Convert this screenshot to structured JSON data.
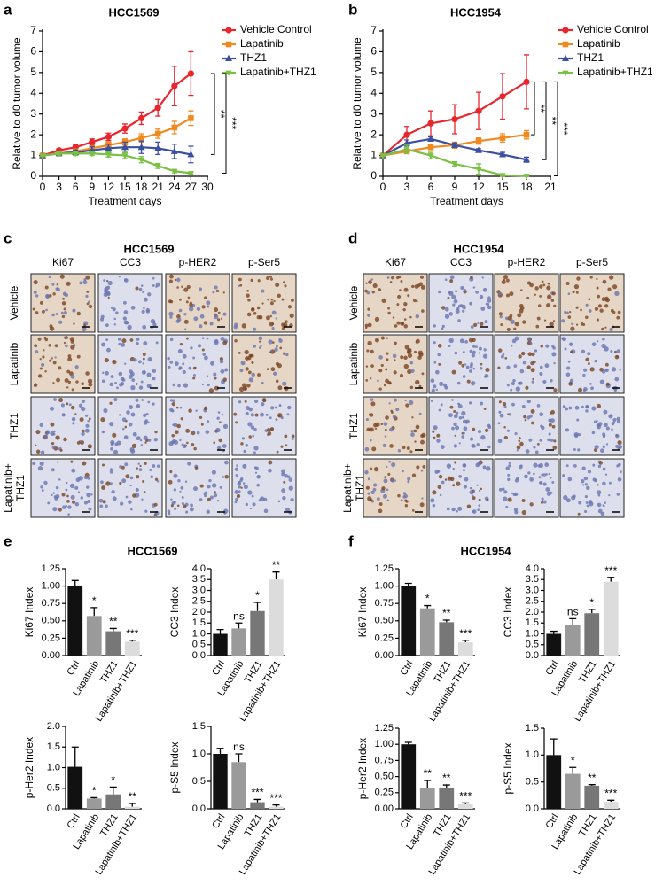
{
  "chart_data": [
    {
      "type": "line",
      "panel": "a",
      "title": "HCC1569",
      "ylabel": "Relative to d0 tumor volume",
      "xlabel": "Treatment days",
      "x": [
        0,
        3,
        6,
        9,
        12,
        15,
        18,
        21,
        24,
        27
      ],
      "xlim": [
        0,
        30
      ],
      "xticks": [
        0,
        3,
        6,
        9,
        12,
        15,
        18,
        21,
        24,
        27,
        30
      ],
      "ylim": [
        0,
        7
      ],
      "yticks": [
        0,
        1,
        2,
        3,
        4,
        5,
        6,
        7
      ],
      "legend": "outside-right",
      "series": [
        {
          "name": "Vehicle Control",
          "color": "#e8262e",
          "marker": "circle",
          "values": [
            1,
            1.25,
            1.4,
            1.65,
            1.9,
            2.3,
            2.8,
            3.3,
            4.35,
            4.95
          ],
          "errors": [
            0.05,
            0.08,
            0.12,
            0.15,
            0.18,
            0.22,
            0.3,
            0.4,
            0.95,
            1.05
          ]
        },
        {
          "name": "Lapatinib",
          "color": "#f08a1f",
          "marker": "square",
          "values": [
            1,
            1.1,
            1.2,
            1.35,
            1.5,
            1.65,
            1.85,
            2.05,
            2.35,
            2.8
          ],
          "errors": [
            0.05,
            0.07,
            0.1,
            0.12,
            0.15,
            0.15,
            0.2,
            0.22,
            0.3,
            0.35
          ]
        },
        {
          "name": "THZ1",
          "color": "#3b4fa0",
          "marker": "triangle",
          "values": [
            1,
            1.1,
            1.15,
            1.25,
            1.35,
            1.4,
            1.4,
            1.35,
            1.2,
            1.05
          ],
          "errors": [
            0.05,
            0.1,
            0.12,
            0.18,
            0.2,
            0.25,
            0.3,
            0.3,
            0.35,
            0.4
          ]
        },
        {
          "name": "Lapatinib+THZ1",
          "color": "#7ac143",
          "marker": "diamond",
          "values": [
            1,
            1.1,
            1.1,
            1.1,
            1.05,
            1.0,
            0.8,
            0.5,
            0.25,
            0.15
          ],
          "errors": [
            0.05,
            0.08,
            0.1,
            0.1,
            0.12,
            0.15,
            0.15,
            0.12,
            0.08,
            0.05
          ]
        }
      ],
      "annotations": [
        {
          "text": "**",
          "compare": [
            0,
            2
          ]
        },
        {
          "text": "***",
          "compare": [
            0,
            3
          ]
        }
      ]
    },
    {
      "type": "line",
      "panel": "b",
      "title": "HCC1954",
      "ylabel": "Relative to d0 tumor volume",
      "xlabel": "Treatment days",
      "x": [
        0,
        3,
        6,
        9,
        12,
        15,
        18
      ],
      "xlim": [
        0,
        21
      ],
      "xticks": [
        0,
        3,
        6,
        9,
        12,
        15,
        18,
        21
      ],
      "ylim": [
        0,
        7
      ],
      "yticks": [
        0,
        1,
        2,
        3,
        4,
        5,
        6,
        7
      ],
      "legend": "outside-right",
      "series": [
        {
          "name": "Vehicle Control",
          "color": "#e8262e",
          "marker": "circle",
          "values": [
            1,
            2.0,
            2.55,
            2.75,
            3.15,
            3.85,
            4.55
          ],
          "errors": [
            0.05,
            0.4,
            0.6,
            0.7,
            0.9,
            1.1,
            1.3
          ]
        },
        {
          "name": "Lapatinib",
          "color": "#f08a1f",
          "marker": "square",
          "values": [
            1,
            1.2,
            1.4,
            1.5,
            1.7,
            1.85,
            2.0
          ],
          "errors": [
            0.05,
            0.1,
            0.12,
            0.15,
            0.15,
            0.2,
            0.2
          ]
        },
        {
          "name": "THZ1",
          "color": "#3b4fa0",
          "marker": "triangle",
          "values": [
            1,
            1.6,
            1.8,
            1.5,
            1.25,
            1.05,
            0.8
          ],
          "errors": [
            0.05,
            0.15,
            0.1,
            0.1,
            0.08,
            0.1,
            0.12
          ]
        },
        {
          "name": "Lapatinib+THZ1",
          "color": "#7ac143",
          "marker": "diamond",
          "values": [
            1,
            1.3,
            1.0,
            0.6,
            0.35,
            0.05,
            0.02
          ],
          "errors": [
            0.05,
            0.2,
            0.15,
            0.1,
            0.25,
            0.05,
            0.02
          ]
        }
      ],
      "annotations": [
        {
          "text": "**",
          "compare": [
            0,
            1
          ]
        },
        {
          "text": "**",
          "compare": [
            0,
            2
          ]
        },
        {
          "text": "***",
          "compare": [
            0,
            3
          ]
        }
      ]
    },
    {
      "type": "bar",
      "ylabel": "Ki67 Index",
      "categories": [
        "Ctrl",
        "Lapatinib",
        "THZ1",
        "Lapatinib+THZ1"
      ],
      "values": [
        1.0,
        0.57,
        0.35,
        0.2
      ],
      "errors": [
        0.08,
        0.12,
        0.04,
        0.02
      ],
      "sig": [
        null,
        "*",
        "**",
        "***"
      ],
      "colors": [
        "#111111",
        "#9a9a9a",
        "#777777",
        "#dcdcdc"
      ],
      "ylim": [
        0,
        1.25
      ],
      "yticks": [
        {
          "value": 0,
          "label": "0.00"
        },
        {
          "value": 0.25,
          "label": "0.25"
        },
        {
          "value": 0.5,
          "label": "0.50"
        },
        {
          "value": 0.75,
          "label": "0.75"
        },
        {
          "value": 1,
          "label": "1.00"
        },
        {
          "value": 1.25,
          "label": "1.25"
        }
      ]
    },
    {
      "type": "bar",
      "ylabel": "CC3 Index",
      "categories": [
        "Ctrl",
        "Lapatinib",
        "THZ1",
        "Lapatinib+THZ1"
      ],
      "values": [
        1.0,
        1.25,
        2.05,
        3.5
      ],
      "errors": [
        0.2,
        0.25,
        0.4,
        0.35
      ],
      "sig": [
        null,
        "ns",
        "*",
        "**"
      ],
      "colors": [
        "#111111",
        "#9a9a9a",
        "#777777",
        "#dcdcdc"
      ],
      "ylim": [
        0,
        4
      ],
      "yticks": [
        {
          "value": 0,
          "label": "0.0"
        },
        {
          "value": 0.5,
          "label": "0.5"
        },
        {
          "value": 1,
          "label": "1.0"
        },
        {
          "value": 1.5,
          "label": "1.5"
        },
        {
          "value": 2,
          "label": "2.0"
        },
        {
          "value": 2.5,
          "label": "2.5"
        },
        {
          "value": 3,
          "label": "3.0"
        },
        {
          "value": 3.5,
          "label": "3.5"
        },
        {
          "value": 4,
          "label": "4.0"
        }
      ]
    },
    {
      "type": "bar",
      "ylabel": "p-Her2 Index",
      "categories": [
        "Ctrl",
        "Lapatinib",
        "THZ1",
        "Lapatinib+THZ1"
      ],
      "values": [
        1.02,
        0.25,
        0.35,
        0.05
      ],
      "errors": [
        0.48,
        0.02,
        0.18,
        0.08
      ],
      "sig": [
        null,
        "*",
        "*",
        "**"
      ],
      "colors": [
        "#111111",
        "#9a9a9a",
        "#777777",
        "#dcdcdc"
      ],
      "ylim": [
        0,
        2
      ],
      "yticks": [
        {
          "value": 0,
          "label": "0.0"
        },
        {
          "value": 0.5,
          "label": "0.5"
        },
        {
          "value": 1,
          "label": "1.0"
        },
        {
          "value": 1.5,
          "label": "1.5"
        },
        {
          "value": 2,
          "label": "2.0"
        }
      ]
    },
    {
      "type": "bar",
      "ylabel": "p-S5 Index",
      "categories": [
        "Ctrl",
        "Lapatinib",
        "THZ1",
        "Lapatinib+THZ1"
      ],
      "values": [
        1.0,
        0.85,
        0.12,
        0.04
      ],
      "errors": [
        0.1,
        0.15,
        0.05,
        0.03
      ],
      "sig": [
        null,
        "ns",
        "***",
        "***"
      ],
      "colors": [
        "#111111",
        "#9a9a9a",
        "#777777",
        "#dcdcdc"
      ],
      "ylim": [
        0,
        1.5
      ],
      "yticks": [
        {
          "value": 0,
          "label": "0.0"
        },
        {
          "value": 0.5,
          "label": "0.5"
        },
        {
          "value": 1,
          "label": "1.0"
        },
        {
          "value": 1.5,
          "label": "1.5"
        }
      ]
    },
    {
      "type": "bar",
      "ylabel": "Ki67 Index",
      "categories": [
        "Ctrl",
        "Lapatinib",
        "THZ1",
        "Lapatinib+THZ1"
      ],
      "values": [
        1.0,
        0.68,
        0.48,
        0.19
      ],
      "errors": [
        0.04,
        0.04,
        0.03,
        0.03
      ],
      "sig": [
        null,
        "*",
        "**",
        "***"
      ],
      "colors": [
        "#111111",
        "#9a9a9a",
        "#777777",
        "#dcdcdc"
      ],
      "ylim": [
        0,
        1.25
      ],
      "yticks": [
        {
          "value": 0,
          "label": "0.00"
        },
        {
          "value": 0.25,
          "label": "0.25"
        },
        {
          "value": 0.5,
          "label": "0.50"
        },
        {
          "value": 0.75,
          "label": "0.75"
        },
        {
          "value": 1,
          "label": "1.00"
        },
        {
          "value": 1.25,
          "label": "1.25"
        }
      ]
    },
    {
      "type": "bar",
      "ylabel": "CC3 Index",
      "categories": [
        "Ctrl",
        "Lapatinib",
        "THZ1",
        "Lapatinib+THZ1"
      ],
      "values": [
        1.0,
        1.4,
        1.95,
        3.4
      ],
      "errors": [
        0.12,
        0.3,
        0.18,
        0.2
      ],
      "sig": [
        null,
        "ns",
        "*",
        "***"
      ],
      "colors": [
        "#111111",
        "#9a9a9a",
        "#777777",
        "#dcdcdc"
      ],
      "ylim": [
        0,
        4
      ],
      "yticks": [
        {
          "value": 0,
          "label": "0.0"
        },
        {
          "value": 0.5,
          "label": "0.5"
        },
        {
          "value": 1,
          "label": "1.0"
        },
        {
          "value": 1.5,
          "label": "1.5"
        },
        {
          "value": 2,
          "label": "2.0"
        },
        {
          "value": 2.5,
          "label": "2.5"
        },
        {
          "value": 3,
          "label": "3.0"
        },
        {
          "value": 3.5,
          "label": "3.5"
        },
        {
          "value": 4,
          "label": "4.0"
        }
      ]
    },
    {
      "type": "bar",
      "ylabel": "p-Her2 Index",
      "categories": [
        "Ctrl",
        "Lapatinib",
        "THZ1",
        "Lapatinib+THZ1"
      ],
      "values": [
        1.0,
        0.32,
        0.33,
        0.07
      ],
      "errors": [
        0.03,
        0.12,
        0.04,
        0.02
      ],
      "sig": [
        null,
        "**",
        "**",
        "***"
      ],
      "colors": [
        "#111111",
        "#9a9a9a",
        "#777777",
        "#dcdcdc"
      ],
      "ylim": [
        0,
        1.25
      ],
      "yticks": [
        {
          "value": 0,
          "label": "0.00"
        },
        {
          "value": 0.25,
          "label": "0.25"
        },
        {
          "value": 0.5,
          "label": "0.50"
        },
        {
          "value": 0.75,
          "label": "0.75"
        },
        {
          "value": 1,
          "label": "1.00"
        },
        {
          "value": 1.25,
          "label": "1.25"
        }
      ]
    },
    {
      "type": "bar",
      "ylabel": "p-S5 Index",
      "categories": [
        "Ctrl",
        "Lapatinib",
        "THZ1",
        "Lapatinib+THZ1"
      ],
      "values": [
        1.0,
        0.65,
        0.43,
        0.13
      ],
      "errors": [
        0.3,
        0.12,
        0.02,
        0.03
      ],
      "sig": [
        null,
        "*",
        "**",
        "***"
      ],
      "colors": [
        "#111111",
        "#9a9a9a",
        "#777777",
        "#dcdcdc"
      ],
      "ylim": [
        0,
        1.5
      ],
      "yticks": [
        {
          "value": 0,
          "label": "0.0"
        },
        {
          "value": 0.5,
          "label": "0.5"
        },
        {
          "value": 1,
          "label": "1.0"
        },
        {
          "value": 1.5,
          "label": "1.5"
        }
      ]
    }
  ],
  "groups": [
    {
      "panel": "e",
      "title": "HCC1569"
    },
    {
      "panel": "f",
      "title": "HCC1954"
    }
  ],
  "ihc_panels": [
    {
      "panel": "c",
      "title": "HCC1569",
      "columns": [
        "Ki67",
        "CC3",
        "p-HER2",
        "p-Ser5"
      ],
      "rows": [
        [
          "Vehicle"
        ],
        [
          "Lapatinib"
        ],
        [
          "THZ1"
        ],
        [
          "Lapatinib+",
          "THZ1"
        ]
      ]
    },
    {
      "panel": "d",
      "title": "HCC1954",
      "columns": [
        "Ki67",
        "CC3",
        "p-HER2",
        "p-Ser5"
      ],
      "rows": [
        [
          "Vehicle"
        ],
        [
          "Lapatinib"
        ],
        [
          "THZ1"
        ],
        [
          "Lapatinib+",
          "THZ1"
        ]
      ]
    }
  ]
}
